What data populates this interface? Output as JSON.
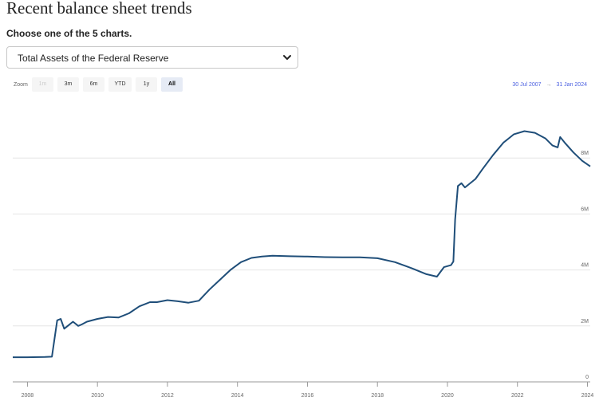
{
  "page": {
    "title": "Recent balance sheet trends",
    "prompt": "Choose one of the 5 charts."
  },
  "selector": {
    "selected": "Total Assets of the Federal Reserve",
    "icon": "chevron-down-icon"
  },
  "zoom": {
    "label": "Zoom",
    "buttons": [
      {
        "label": "1m",
        "state": "disabled"
      },
      {
        "label": "3m",
        "state": "normal"
      },
      {
        "label": "6m",
        "state": "normal"
      },
      {
        "label": "YTD",
        "state": "normal"
      },
      {
        "label": "1y",
        "state": "normal"
      },
      {
        "label": "All",
        "state": "active"
      }
    ]
  },
  "range": {
    "from": "30 Jul 2007",
    "arrow": "→",
    "to": "31 Jan 2024"
  },
  "chart_data": {
    "type": "line",
    "title": "",
    "xlabel": "",
    "ylabel": "",
    "x_ticks": [
      "2008",
      "2010",
      "2012",
      "2014",
      "2016",
      "2018",
      "2020",
      "2022",
      "2024"
    ],
    "y_ticks": [
      "0",
      "2M",
      "4M",
      "6M",
      "8M"
    ],
    "xlim": [
      2007.58,
      2024.08
    ],
    "ylim": [
      0,
      10000000
    ],
    "grid": true,
    "line_color": "#1f4e79",
    "series": [
      {
        "name": "",
        "x": [
          2007.58,
          2008.0,
          2008.5,
          2008.7,
          2008.85,
          2008.95,
          2009.05,
          2009.15,
          2009.3,
          2009.45,
          2009.55,
          2009.7,
          2010.0,
          2010.3,
          2010.6,
          2010.9,
          2011.2,
          2011.5,
          2011.7,
          2012.0,
          2012.3,
          2012.6,
          2012.9,
          2013.2,
          2013.5,
          2013.8,
          2014.1,
          2014.4,
          2014.7,
          2015.0,
          2015.5,
          2016.0,
          2016.5,
          2017.0,
          2017.5,
          2018.0,
          2018.5,
          2019.0,
          2019.4,
          2019.7,
          2019.9,
          2020.1,
          2020.17,
          2020.22,
          2020.3,
          2020.4,
          2020.5,
          2020.8,
          2021.0,
          2021.3,
          2021.6,
          2021.9,
          2022.2,
          2022.5,
          2022.8,
          2023.0,
          2023.15,
          2023.22,
          2023.35,
          2023.6,
          2023.85,
          2024.08
        ],
        "values": [
          880000,
          880000,
          890000,
          900000,
          2200000,
          2250000,
          1900000,
          2000000,
          2150000,
          2000000,
          2050000,
          2150000,
          2250000,
          2320000,
          2300000,
          2450000,
          2700000,
          2850000,
          2850000,
          2920000,
          2880000,
          2830000,
          2900000,
          3300000,
          3650000,
          4000000,
          4280000,
          4430000,
          4480000,
          4510000,
          4490000,
          4480000,
          4460000,
          4450000,
          4450000,
          4420000,
          4280000,
          4050000,
          3850000,
          3760000,
          4100000,
          4170000,
          4300000,
          5800000,
          7000000,
          7100000,
          6950000,
          7250000,
          7600000,
          8100000,
          8550000,
          8850000,
          8960000,
          8900000,
          8700000,
          8450000,
          8380000,
          8750000,
          8550000,
          8200000,
          7900000,
          7700000
        ]
      }
    ]
  }
}
